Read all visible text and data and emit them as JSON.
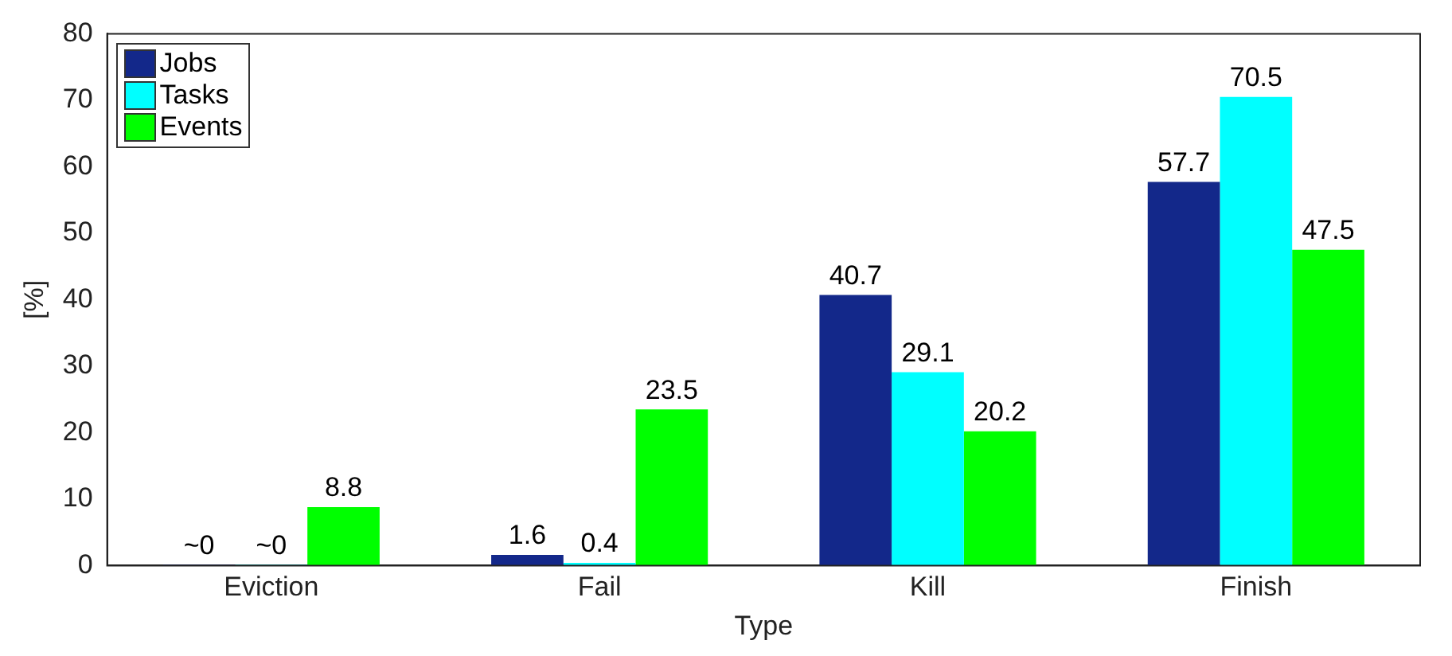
{
  "chart_data": {
    "type": "bar",
    "xlabel": "Type",
    "ylabel": "[%]",
    "categories": [
      "Eviction",
      "Fail",
      "Kill",
      "Finish"
    ],
    "series": [
      {
        "name": "Jobs",
        "color": "#13288a",
        "values": [
          0.1,
          1.6,
          40.7,
          57.7
        ],
        "value_labels": [
          "~0",
          "1.6",
          "40.7",
          "57.7"
        ]
      },
      {
        "name": "Tasks",
        "color": "#00ffff",
        "values": [
          0.1,
          0.4,
          29.1,
          70.5
        ],
        "value_labels": [
          "~0",
          "0.4",
          "29.1",
          "70.5"
        ]
      },
      {
        "name": "Events",
        "color": "#00ff00",
        "values": [
          8.8,
          23.5,
          20.2,
          47.5
        ],
        "value_labels": [
          "8.8",
          "23.5",
          "20.2",
          "47.5"
        ]
      }
    ],
    "ylim": [
      0,
      80
    ],
    "yticks": [
      0,
      10,
      20,
      30,
      40,
      50,
      60,
      70,
      80
    ],
    "grid": false,
    "legend": "top left"
  }
}
